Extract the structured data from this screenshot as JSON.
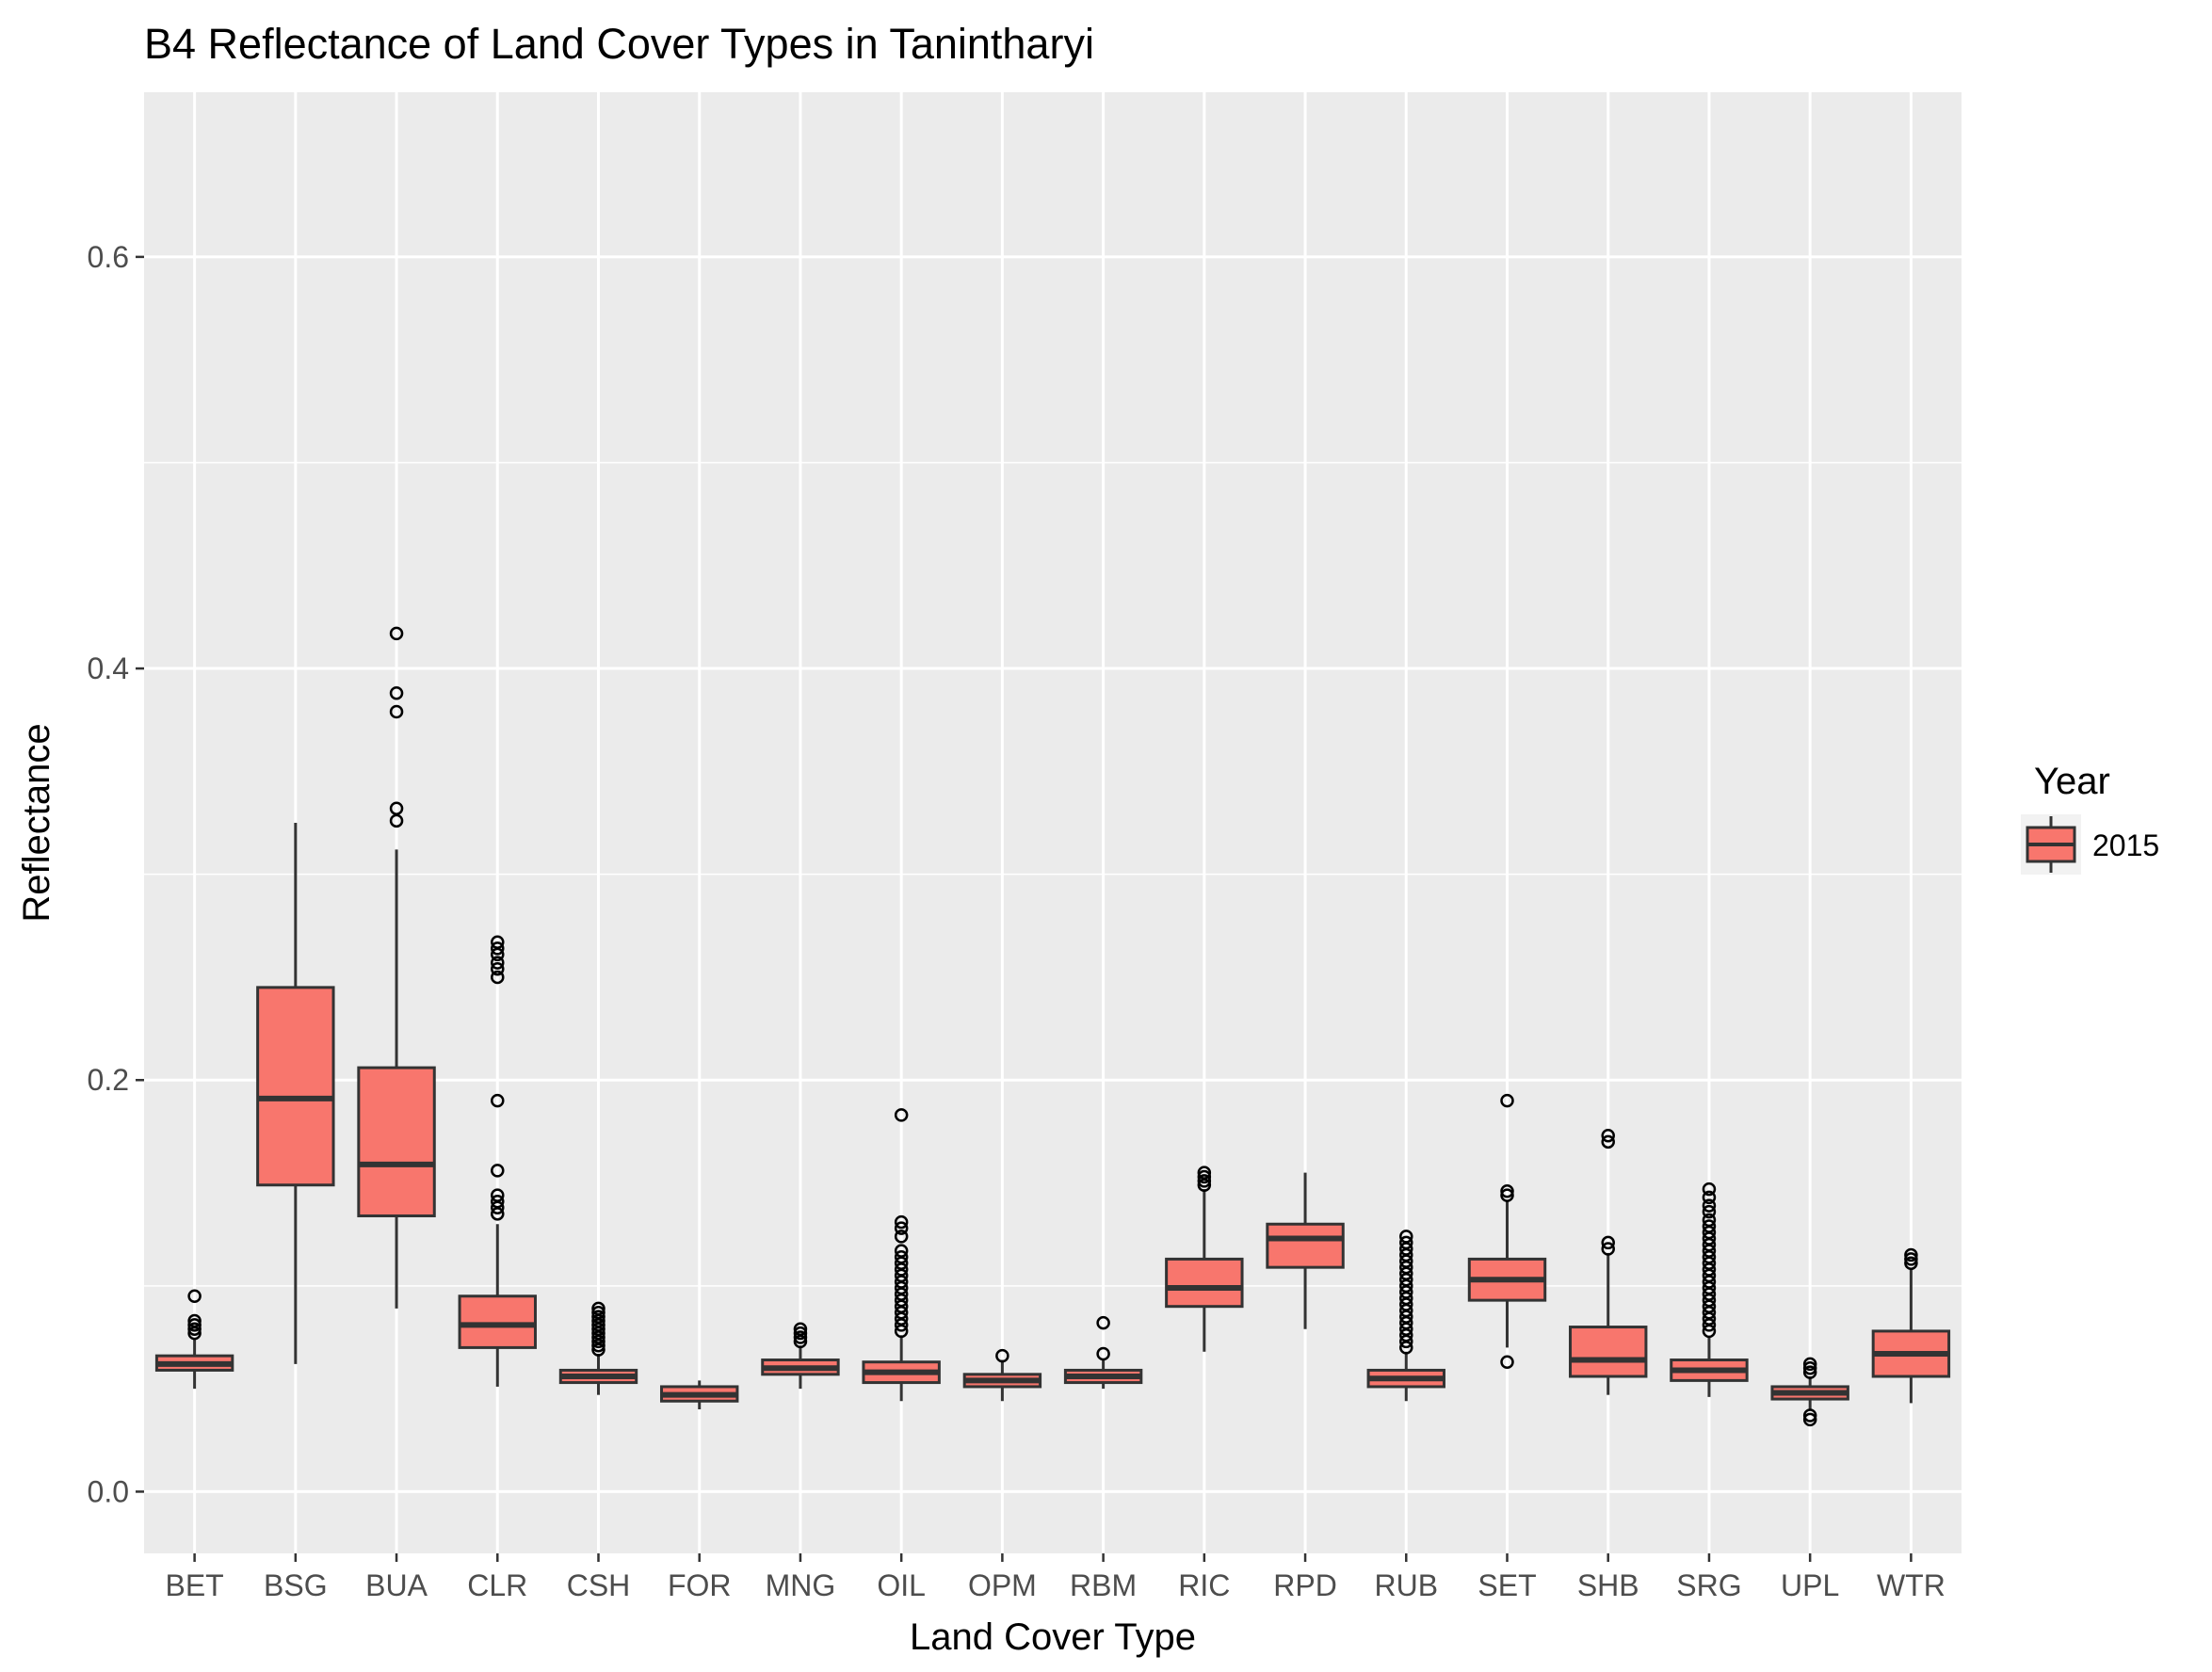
{
  "chart_data": {
    "type": "box",
    "title": "B4 Reflectance of Land Cover Types in Tanintharyi",
    "xlabel": "Land Cover Type",
    "ylabel": "Reflectance",
    "ylim": [
      -0.03,
      0.68
    ],
    "yticks": [
      0.0,
      0.2,
      0.4,
      0.6
    ],
    "ytick_labels": [
      "0.0",
      "0.2",
      "0.4",
      "0.6"
    ],
    "grid": true,
    "legend": {
      "title": "Year",
      "position": "right",
      "entries": [
        {
          "label": "2015",
          "color": "#F8766D"
        }
      ]
    },
    "categories": [
      "BET",
      "BSG",
      "BUA",
      "CLR",
      "CSH",
      "FOR",
      "MNG",
      "OIL",
      "OPM",
      "RBM",
      "RIC",
      "RPD",
      "RUB",
      "SET",
      "SHB",
      "SRG",
      "UPL",
      "WTR"
    ],
    "series": [
      {
        "name": "2015",
        "color": "#F8766D",
        "boxes": [
          {
            "category": "BET",
            "whisker_low": 0.05,
            "q1": 0.059,
            "median": 0.062,
            "q3": 0.066,
            "whisker_high": 0.074,
            "outliers": [
              0.077,
              0.079,
              0.081,
              0.083,
              0.095
            ]
          },
          {
            "category": "BSG",
            "whisker_low": 0.062,
            "q1": 0.149,
            "median": 0.191,
            "q3": 0.245,
            "whisker_high": 0.325,
            "outliers": []
          },
          {
            "category": "BUA",
            "whisker_low": 0.089,
            "q1": 0.134,
            "median": 0.159,
            "q3": 0.206,
            "whisker_high": 0.312,
            "outliers": [
              0.326,
              0.332,
              0.379,
              0.388,
              0.417
            ]
          },
          {
            "category": "CLR",
            "whisker_low": 0.051,
            "q1": 0.07,
            "median": 0.081,
            "q3": 0.095,
            "whisker_high": 0.13,
            "outliers": [
              0.135,
              0.138,
              0.141,
              0.144,
              0.156,
              0.19,
              0.25,
              0.254,
              0.257,
              0.261,
              0.264,
              0.267
            ]
          },
          {
            "category": "CSH",
            "whisker_low": 0.047,
            "q1": 0.053,
            "median": 0.056,
            "q3": 0.059,
            "whisker_high": 0.067,
            "outliers": [
              0.069,
              0.071,
              0.073,
              0.075,
              0.077,
              0.079,
              0.081,
              0.083,
              0.085,
              0.087,
              0.089
            ]
          },
          {
            "category": "FOR",
            "whisker_low": 0.04,
            "q1": 0.044,
            "median": 0.047,
            "q3": 0.051,
            "whisker_high": 0.054,
            "outliers": []
          },
          {
            "category": "MNG",
            "whisker_low": 0.05,
            "q1": 0.057,
            "median": 0.06,
            "q3": 0.064,
            "whisker_high": 0.071,
            "outliers": [
              0.073,
              0.075,
              0.077,
              0.079
            ]
          },
          {
            "category": "OIL",
            "whisker_low": 0.044,
            "q1": 0.053,
            "median": 0.058,
            "q3": 0.063,
            "whisker_high": 0.076,
            "outliers": [
              0.078,
              0.081,
              0.084,
              0.087,
              0.09,
              0.093,
              0.096,
              0.099,
              0.102,
              0.105,
              0.108,
              0.111,
              0.114,
              0.117,
              0.124,
              0.128,
              0.131,
              0.183
            ]
          },
          {
            "category": "OPM",
            "whisker_low": 0.044,
            "q1": 0.051,
            "median": 0.054,
            "q3": 0.057,
            "whisker_high": 0.064,
            "outliers": [
              0.066
            ]
          },
          {
            "category": "RBM",
            "whisker_low": 0.05,
            "q1": 0.053,
            "median": 0.056,
            "q3": 0.059,
            "whisker_high": 0.064,
            "outliers": [
              0.067,
              0.082
            ]
          },
          {
            "category": "RIC",
            "whisker_low": 0.068,
            "q1": 0.09,
            "median": 0.099,
            "q3": 0.113,
            "whisker_high": 0.147,
            "outliers": [
              0.149,
              0.151,
              0.153,
              0.155
            ]
          },
          {
            "category": "RPD",
            "whisker_low": 0.079,
            "q1": 0.109,
            "median": 0.123,
            "q3": 0.13,
            "whisker_high": 0.155,
            "outliers": []
          },
          {
            "category": "RUB",
            "whisker_low": 0.044,
            "q1": 0.051,
            "median": 0.055,
            "q3": 0.059,
            "whisker_high": 0.068,
            "outliers": [
              0.07,
              0.073,
              0.076,
              0.079,
              0.082,
              0.085,
              0.088,
              0.091,
              0.094,
              0.097,
              0.1,
              0.103,
              0.106,
              0.109,
              0.112,
              0.115,
              0.118,
              0.121,
              0.124
            ]
          },
          {
            "category": "SET",
            "whisker_low": 0.07,
            "q1": 0.093,
            "median": 0.103,
            "q3": 0.113,
            "whisker_high": 0.141,
            "outliers": [
              0.063,
              0.144,
              0.146,
              0.19
            ]
          },
          {
            "category": "SHB",
            "whisker_low": 0.047,
            "q1": 0.056,
            "median": 0.064,
            "q3": 0.08,
            "whisker_high": 0.116,
            "outliers": [
              0.118,
              0.121,
              0.17,
              0.173
            ]
          },
          {
            "category": "SRG",
            "whisker_low": 0.046,
            "q1": 0.054,
            "median": 0.059,
            "q3": 0.064,
            "whisker_high": 0.075,
            "outliers": [
              0.078,
              0.081,
              0.084,
              0.087,
              0.09,
              0.093,
              0.096,
              0.099,
              0.102,
              0.105,
              0.108,
              0.111,
              0.114,
              0.117,
              0.12,
              0.123,
              0.126,
              0.129,
              0.132,
              0.136,
              0.139,
              0.143,
              0.147
            ]
          },
          {
            "category": "UPL",
            "whisker_low": 0.04,
            "q1": 0.045,
            "median": 0.048,
            "q3": 0.051,
            "whisker_high": 0.056,
            "outliers": [
              0.035,
              0.037,
              0.058,
              0.06,
              0.062
            ]
          },
          {
            "category": "WTR",
            "whisker_low": 0.043,
            "q1": 0.056,
            "median": 0.067,
            "q3": 0.078,
            "whisker_high": 0.108,
            "outliers": [
              0.111,
              0.113,
              0.115
            ]
          }
        ]
      }
    ]
  }
}
